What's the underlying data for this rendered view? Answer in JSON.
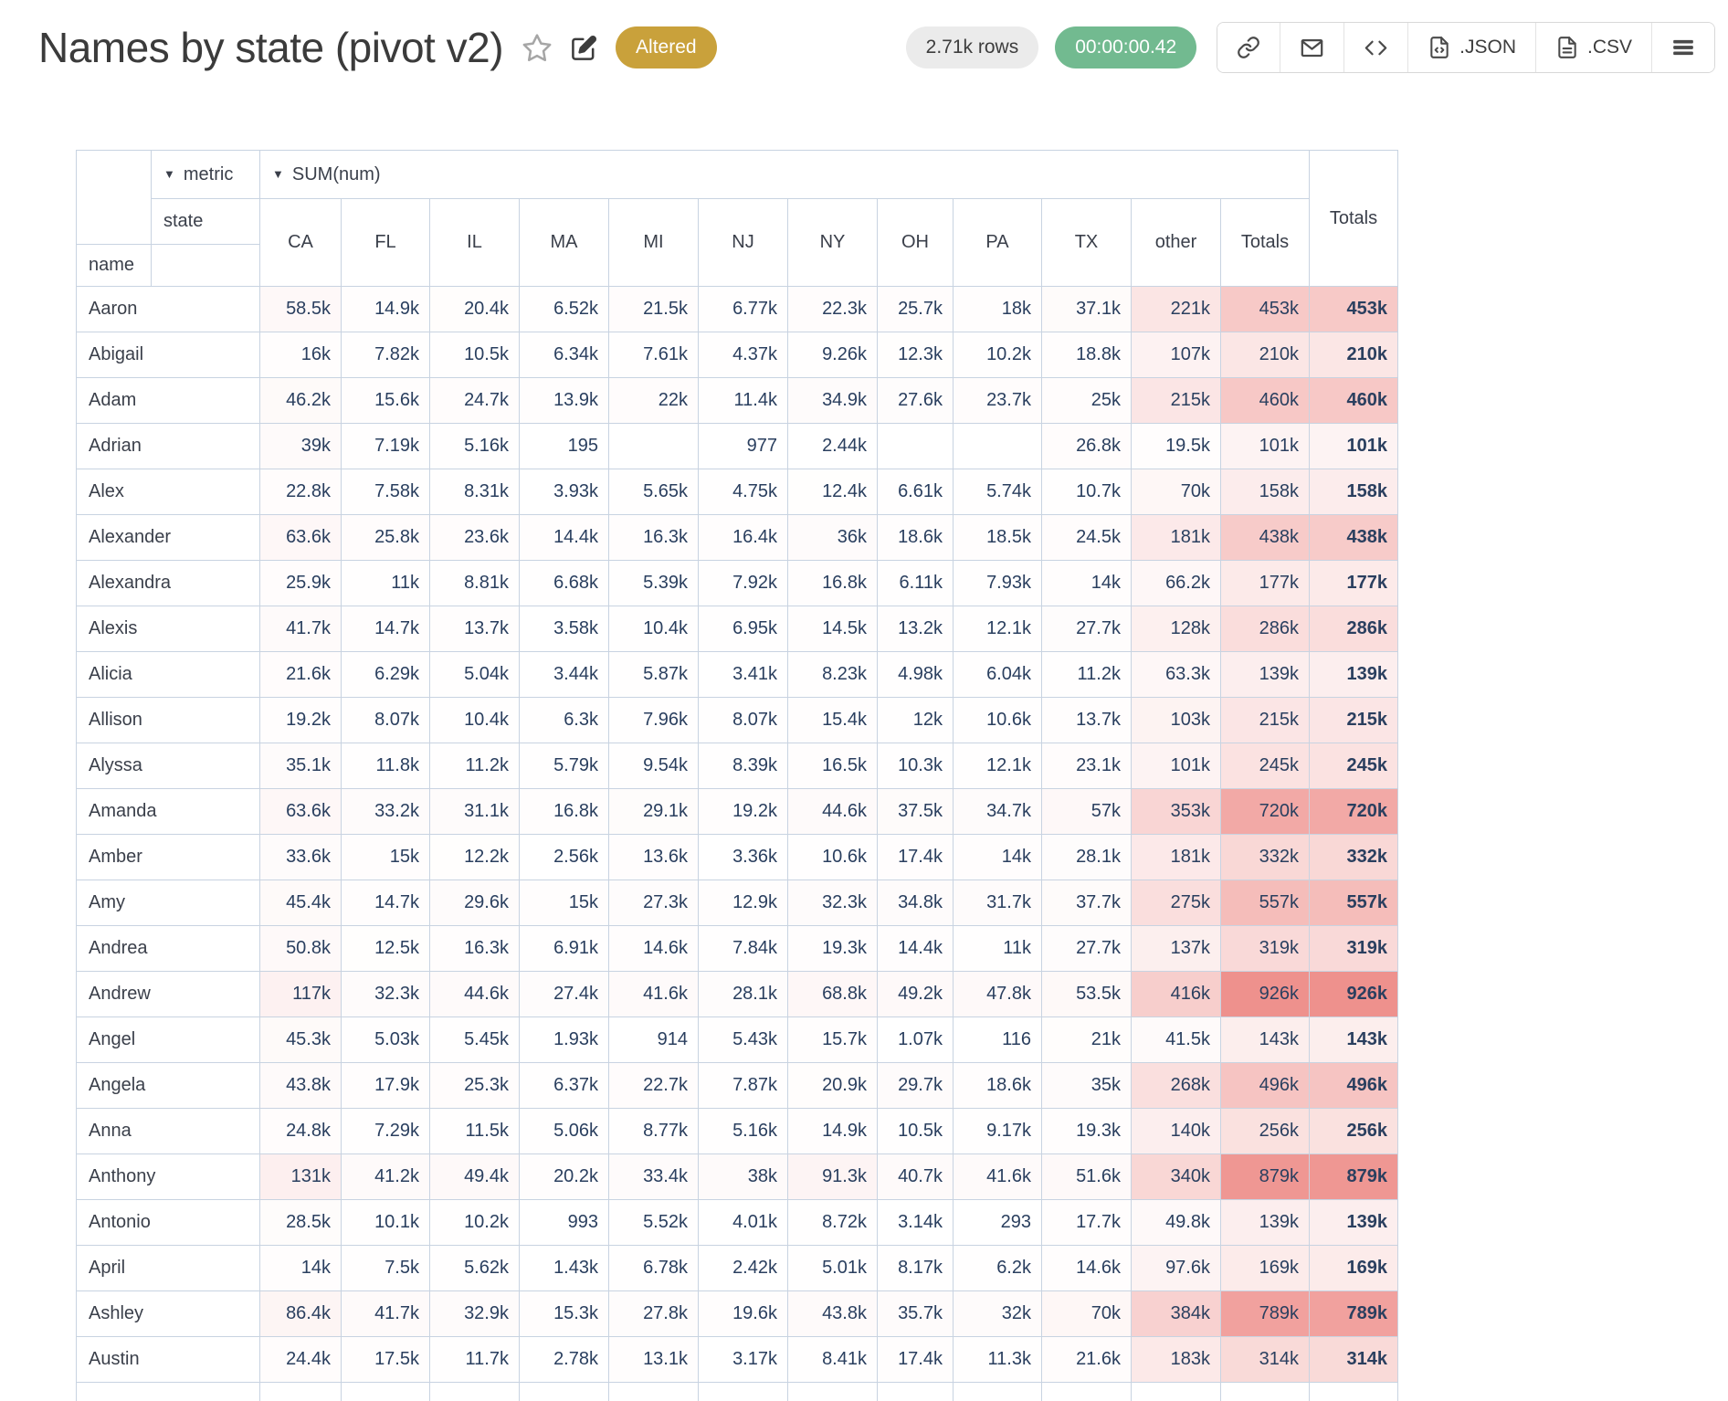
{
  "header": {
    "title": "Names by state (pivot v2)",
    "status_badge": "Altered",
    "rows_count": "2.71k rows",
    "duration": "00:00:00.42",
    "export_json_label": ".JSON",
    "export_csv_label": ".CSV"
  },
  "colors": {
    "status_badge_bg": "#c9a13b",
    "rows_badge_bg": "#ebebeb",
    "duration_badge_bg": "#72ba90",
    "table_border": "#c8d3e1",
    "number_text": "#2a3f5f",
    "heatmap_max_color": "#ee918d"
  },
  "pivot": {
    "metric_dropdown": "metric",
    "aggregator_dropdown": "SUM(num)",
    "col_attr": "state",
    "row_attr": "name",
    "columns": [
      "CA",
      "FL",
      "IL",
      "MA",
      "MI",
      "NJ",
      "NY",
      "OH",
      "PA",
      "TX",
      "other",
      "Totals"
    ],
    "row_total_header": "Totals",
    "heatmap": {
      "max_value": 926000,
      "max_color": "#ee918d"
    },
    "rows": [
      {
        "name": "Aaron",
        "values": [
          "58.5k",
          "14.9k",
          "20.4k",
          "6.52k",
          "21.5k",
          "6.77k",
          "22.3k",
          "25.7k",
          "18k",
          "37.1k",
          "221k",
          "453k"
        ],
        "total": "453k"
      },
      {
        "name": "Abigail",
        "values": [
          "16k",
          "7.82k",
          "10.5k",
          "6.34k",
          "7.61k",
          "4.37k",
          "9.26k",
          "12.3k",
          "10.2k",
          "18.8k",
          "107k",
          "210k"
        ],
        "total": "210k"
      },
      {
        "name": "Adam",
        "values": [
          "46.2k",
          "15.6k",
          "24.7k",
          "13.9k",
          "22k",
          "11.4k",
          "34.9k",
          "27.6k",
          "23.7k",
          "25k",
          "215k",
          "460k"
        ],
        "total": "460k"
      },
      {
        "name": "Adrian",
        "values": [
          "39k",
          "7.19k",
          "5.16k",
          "195",
          "",
          "977",
          "2.44k",
          "",
          "",
          "26.8k",
          "19.5k",
          "101k"
        ],
        "total": "101k"
      },
      {
        "name": "Alex",
        "values": [
          "22.8k",
          "7.58k",
          "8.31k",
          "3.93k",
          "5.65k",
          "4.75k",
          "12.4k",
          "6.61k",
          "5.74k",
          "10.7k",
          "70k",
          "158k"
        ],
        "total": "158k"
      },
      {
        "name": "Alexander",
        "values": [
          "63.6k",
          "25.8k",
          "23.6k",
          "14.4k",
          "16.3k",
          "16.4k",
          "36k",
          "18.6k",
          "18.5k",
          "24.5k",
          "181k",
          "438k"
        ],
        "total": "438k"
      },
      {
        "name": "Alexandra",
        "values": [
          "25.9k",
          "11k",
          "8.81k",
          "6.68k",
          "5.39k",
          "7.92k",
          "16.8k",
          "6.11k",
          "7.93k",
          "14k",
          "66.2k",
          "177k"
        ],
        "total": "177k"
      },
      {
        "name": "Alexis",
        "values": [
          "41.7k",
          "14.7k",
          "13.7k",
          "3.58k",
          "10.4k",
          "6.95k",
          "14.5k",
          "13.2k",
          "12.1k",
          "27.7k",
          "128k",
          "286k"
        ],
        "total": "286k"
      },
      {
        "name": "Alicia",
        "values": [
          "21.6k",
          "6.29k",
          "5.04k",
          "3.44k",
          "5.87k",
          "3.41k",
          "8.23k",
          "4.98k",
          "6.04k",
          "11.2k",
          "63.3k",
          "139k"
        ],
        "total": "139k"
      },
      {
        "name": "Allison",
        "values": [
          "19.2k",
          "8.07k",
          "10.4k",
          "6.3k",
          "7.96k",
          "8.07k",
          "15.4k",
          "12k",
          "10.6k",
          "13.7k",
          "103k",
          "215k"
        ],
        "total": "215k"
      },
      {
        "name": "Alyssa",
        "values": [
          "35.1k",
          "11.8k",
          "11.2k",
          "5.79k",
          "9.54k",
          "8.39k",
          "16.5k",
          "10.3k",
          "12.1k",
          "23.1k",
          "101k",
          "245k"
        ],
        "total": "245k"
      },
      {
        "name": "Amanda",
        "values": [
          "63.6k",
          "33.2k",
          "31.1k",
          "16.8k",
          "29.1k",
          "19.2k",
          "44.6k",
          "37.5k",
          "34.7k",
          "57k",
          "353k",
          "720k"
        ],
        "total": "720k"
      },
      {
        "name": "Amber",
        "values": [
          "33.6k",
          "15k",
          "12.2k",
          "2.56k",
          "13.6k",
          "3.36k",
          "10.6k",
          "17.4k",
          "14k",
          "28.1k",
          "181k",
          "332k"
        ],
        "total": "332k"
      },
      {
        "name": "Amy",
        "values": [
          "45.4k",
          "14.7k",
          "29.6k",
          "15k",
          "27.3k",
          "12.9k",
          "32.3k",
          "34.8k",
          "31.7k",
          "37.7k",
          "275k",
          "557k"
        ],
        "total": "557k"
      },
      {
        "name": "Andrea",
        "values": [
          "50.8k",
          "12.5k",
          "16.3k",
          "6.91k",
          "14.6k",
          "7.84k",
          "19.3k",
          "14.4k",
          "11k",
          "27.7k",
          "137k",
          "319k"
        ],
        "total": "319k"
      },
      {
        "name": "Andrew",
        "values": [
          "117k",
          "32.3k",
          "44.6k",
          "27.4k",
          "41.6k",
          "28.1k",
          "68.8k",
          "49.2k",
          "47.8k",
          "53.5k",
          "416k",
          "926k"
        ],
        "total": "926k"
      },
      {
        "name": "Angel",
        "values": [
          "45.3k",
          "5.03k",
          "5.45k",
          "1.93k",
          "914",
          "5.43k",
          "15.7k",
          "1.07k",
          "116",
          "21k",
          "41.5k",
          "143k"
        ],
        "total": "143k"
      },
      {
        "name": "Angela",
        "values": [
          "43.8k",
          "17.9k",
          "25.3k",
          "6.37k",
          "22.7k",
          "7.87k",
          "20.9k",
          "29.7k",
          "18.6k",
          "35k",
          "268k",
          "496k"
        ],
        "total": "496k"
      },
      {
        "name": "Anna",
        "values": [
          "24.8k",
          "7.29k",
          "11.5k",
          "5.06k",
          "8.77k",
          "5.16k",
          "14.9k",
          "10.5k",
          "9.17k",
          "19.3k",
          "140k",
          "256k"
        ],
        "total": "256k"
      },
      {
        "name": "Anthony",
        "values": [
          "131k",
          "41.2k",
          "49.4k",
          "20.2k",
          "33.4k",
          "38k",
          "91.3k",
          "40.7k",
          "41.6k",
          "51.6k",
          "340k",
          "879k"
        ],
        "total": "879k"
      },
      {
        "name": "Antonio",
        "values": [
          "28.5k",
          "10.1k",
          "10.2k",
          "993",
          "5.52k",
          "4.01k",
          "8.72k",
          "3.14k",
          "293",
          "17.7k",
          "49.8k",
          "139k"
        ],
        "total": "139k"
      },
      {
        "name": "April",
        "values": [
          "14k",
          "7.5k",
          "5.62k",
          "1.43k",
          "6.78k",
          "2.42k",
          "5.01k",
          "8.17k",
          "6.2k",
          "14.6k",
          "97.6k",
          "169k"
        ],
        "total": "169k"
      },
      {
        "name": "Ashley",
        "values": [
          "86.4k",
          "41.7k",
          "32.9k",
          "15.3k",
          "27.8k",
          "19.6k",
          "43.8k",
          "35.7k",
          "32k",
          "70k",
          "384k",
          "789k"
        ],
        "total": "789k"
      },
      {
        "name": "Austin",
        "values": [
          "24.4k",
          "17.5k",
          "11.7k",
          "2.78k",
          "13.1k",
          "3.17k",
          "8.41k",
          "17.4k",
          "11.3k",
          "21.6k",
          "183k",
          "314k"
        ],
        "total": "314k"
      }
    ]
  }
}
